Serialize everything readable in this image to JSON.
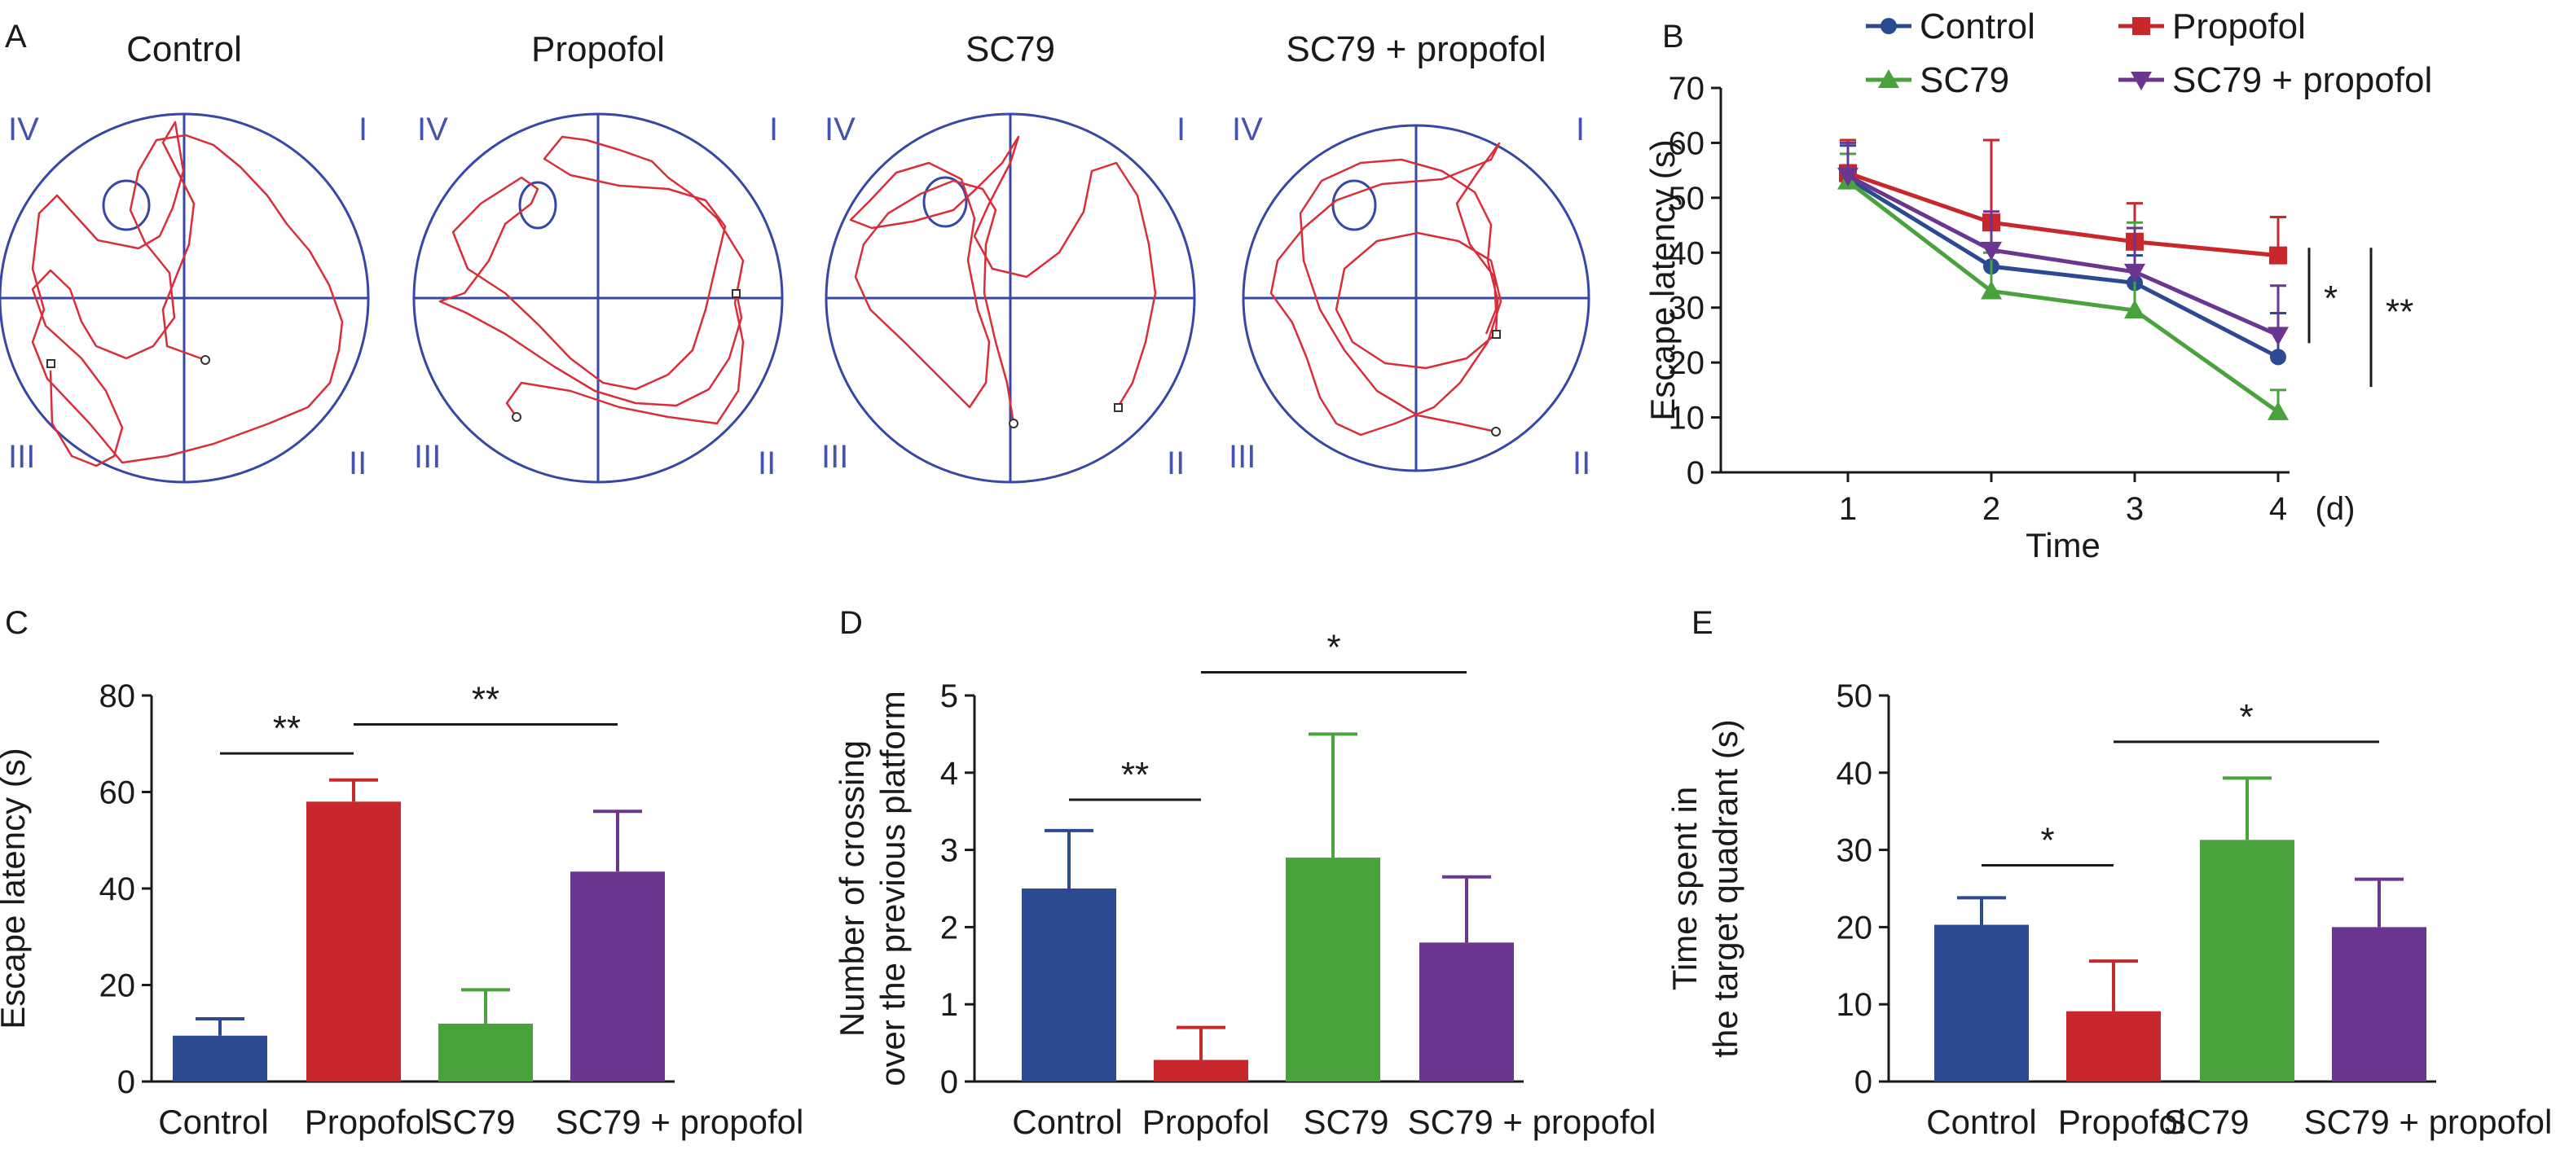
{
  "colors": {
    "control": "#2b4a91",
    "propofol": "#c8282c",
    "sc79": "#49a23c",
    "combo": "#6a3690",
    "maze_line": "#3747a6",
    "quadrant_label": "#4553ae",
    "track": "#d92e3a",
    "text": "#1a1a1a"
  },
  "panel_a": {
    "letter": "A",
    "quadrant_labels": {
      "q1": "I",
      "q2": "II",
      "q3": "III",
      "q4": "IV"
    },
    "mazes": [
      {
        "title": "Control"
      },
      {
        "title": "Propofol"
      },
      {
        "title": "SC79"
      },
      {
        "title": "SC79 + propofol"
      }
    ]
  },
  "chart_data": [
    {
      "panel": "B",
      "type": "line",
      "xlabel": "Time",
      "xunit": "(d)",
      "ylabel": "Escape latency (s)",
      "ylim": [
        0,
        70
      ],
      "yticks": [
        0,
        10,
        20,
        30,
        40,
        50,
        60,
        70
      ],
      "x": [
        1,
        2,
        3,
        4
      ],
      "legend_position": "top",
      "series": [
        {
          "name": "Control",
          "color_key": "control",
          "marker": "circle",
          "values": [
            53.5,
            37.5,
            34.5,
            21
          ],
          "err": [
            6,
            8,
            5,
            8
          ]
        },
        {
          "name": "Propofol",
          "color_key": "propofol",
          "marker": "square",
          "values": [
            54.5,
            45.5,
            42,
            39.5
          ],
          "err": [
            6,
            15,
            7,
            7
          ]
        },
        {
          "name": "SC79",
          "color_key": "sc79",
          "marker": "triangle-up",
          "values": [
            53,
            33,
            29.5,
            11
          ],
          "err": [
            5,
            7,
            16,
            4
          ]
        },
        {
          "name": "SC79 + propofol",
          "color_key": "combo",
          "marker": "triangle-down",
          "values": [
            54,
            40.5,
            36.5,
            25
          ],
          "err": [
            6,
            7,
            8,
            9
          ]
        }
      ],
      "significance": [
        {
          "label": "*",
          "y_range": [
            25,
            40
          ]
        },
        {
          "label": "**",
          "y_range": [
            20,
            40
          ]
        }
      ]
    },
    {
      "panel": "C",
      "type": "bar",
      "ylabel": "Escape latency (s)",
      "categories": [
        "Control",
        "Propofol",
        "SC79",
        "SC79 + propofol"
      ],
      "values": [
        9.5,
        58,
        12,
        43.5
      ],
      "err": [
        3.5,
        4.5,
        7,
        12.5
      ],
      "ylim": [
        0,
        80
      ],
      "yticks": [
        0,
        20,
        40,
        60,
        80
      ],
      "significance": [
        {
          "from": 0,
          "to": 1,
          "label": "**",
          "y": 68
        },
        {
          "from": 1,
          "to": 3,
          "label": "**",
          "y": 74
        }
      ]
    },
    {
      "panel": "D",
      "type": "bar",
      "ylabel_lines": [
        "Number of crossing",
        "over the previous platform"
      ],
      "categories": [
        "Control",
        "Propofol",
        "SC79",
        "SC79 + propofol"
      ],
      "values": [
        2.5,
        0.28,
        2.9,
        1.8
      ],
      "err": [
        0.75,
        0.42,
        1.6,
        0.85
      ],
      "ylim": [
        0,
        5
      ],
      "yticks": [
        0,
        1,
        2,
        3,
        4,
        5
      ],
      "significance": [
        {
          "from": 0,
          "to": 1,
          "label": "**",
          "y": 3.65
        },
        {
          "from": 1,
          "to": 3,
          "label": "*",
          "y": 5.3
        }
      ]
    },
    {
      "panel": "E",
      "type": "bar",
      "ylabel_lines": [
        "Time spent in",
        "the target quadrant (s)"
      ],
      "categories": [
        "Control",
        "Propofol",
        "SC79",
        "SC79 + propofol"
      ],
      "values": [
        20.3,
        9.1,
        31.3,
        20
      ],
      "err": [
        3.5,
        6.5,
        8,
        6.2
      ],
      "ylim": [
        0,
        50
      ],
      "yticks": [
        0,
        10,
        20,
        30,
        40,
        50
      ],
      "significance": [
        {
          "from": 0,
          "to": 1,
          "label": "*",
          "y": 28
        },
        {
          "from": 1,
          "to": 3,
          "label": "*",
          "y": 44
        }
      ]
    }
  ]
}
